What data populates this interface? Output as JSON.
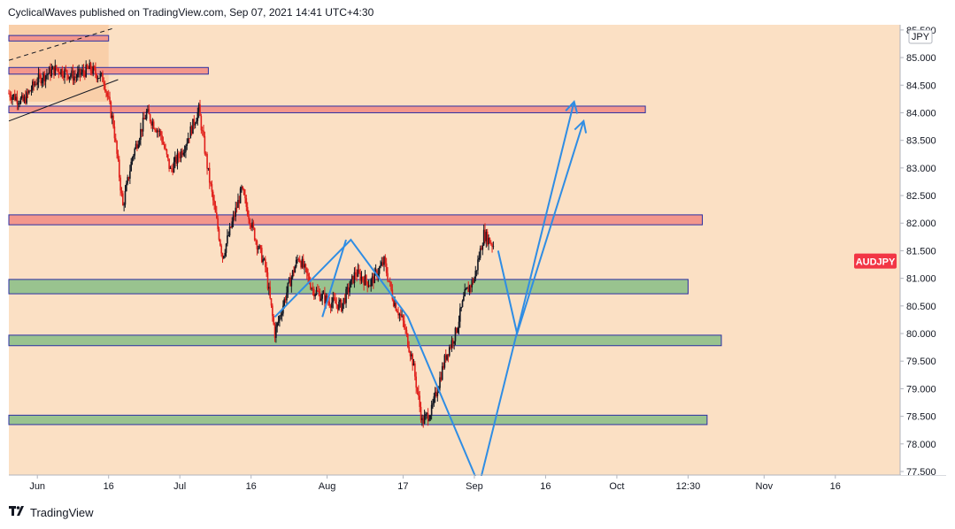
{
  "header": {
    "published": "CyclicalWaves published on TradingView.com, Sep 07, 2021 14:41 UTC+4:30"
  },
  "footer": {
    "brand": "TradingView",
    "logo_icon": "tradingview-logo-icon"
  },
  "colors": {
    "background": "#fbe0c4",
    "resistance_fill": "#f3978c",
    "support_fill": "#99c38f",
    "zone_border": "#2b2fa3",
    "projection_line": "#2f8de4",
    "candle_up": "#131722",
    "candle_down": "#e0201b",
    "price_tag": "#f23645",
    "trendline": "#131722"
  },
  "chart_data": {
    "type": "candlestick",
    "symbol_label": "AUDJPY",
    "currency_label": "JPY",
    "y_axis": {
      "min": 77.5,
      "max": 85.5,
      "ticks": [
        "85.500",
        "85.000",
        "84.500",
        "84.000",
        "83.500",
        "83.000",
        "82.500",
        "82.000",
        "81.500",
        "81.000",
        "80.500",
        "80.000",
        "79.500",
        "79.000",
        "78.500",
        "78.000",
        "77.500"
      ]
    },
    "x_axis": {
      "range_days": [
        -6,
        144
      ],
      "range_note": "x in days after 2021-06-01",
      "ticks": [
        {
          "label": "Jun",
          "day": 0
        },
        {
          "label": "16",
          "day": 15
        },
        {
          "label": "Jul",
          "day": 30
        },
        {
          "label": "16",
          "day": 45
        },
        {
          "label": "Aug",
          "day": 61
        },
        {
          "label": "17",
          "day": 77
        },
        {
          "label": "Sep",
          "day": 92
        },
        {
          "label": "16",
          "day": 107
        },
        {
          "label": "Oct",
          "day": 122
        },
        {
          "label": "12:30",
          "day": 137
        },
        {
          "label": "Nov",
          "day": 153
        },
        {
          "label": "16",
          "day": 168
        }
      ]
    },
    "price_path": [
      {
        "day": -6,
        "price": 84.35
      },
      {
        "day": -3,
        "price": 84.2
      },
      {
        "day": 0,
        "price": 84.6
      },
      {
        "day": 4,
        "price": 84.8
      },
      {
        "day": 8,
        "price": 84.65
      },
      {
        "day": 11,
        "price": 84.8
      },
      {
        "day": 14,
        "price": 84.6
      },
      {
        "day": 16,
        "price": 83.8
      },
      {
        "day": 18,
        "price": 82.3
      },
      {
        "day": 20,
        "price": 83.2
      },
      {
        "day": 23,
        "price": 84.0
      },
      {
        "day": 26,
        "price": 83.6
      },
      {
        "day": 28,
        "price": 82.95
      },
      {
        "day": 31,
        "price": 83.4
      },
      {
        "day": 34,
        "price": 84.05
      },
      {
        "day": 36,
        "price": 82.9
      },
      {
        "day": 39,
        "price": 81.4
      },
      {
        "day": 41,
        "price": 82.0
      },
      {
        "day": 43,
        "price": 82.6
      },
      {
        "day": 46,
        "price": 81.7
      },
      {
        "day": 48,
        "price": 81.2
      },
      {
        "day": 50,
        "price": 80.0
      },
      {
        "day": 53,
        "price": 80.9
      },
      {
        "day": 55,
        "price": 81.4
      },
      {
        "day": 58,
        "price": 80.8
      },
      {
        "day": 61,
        "price": 80.6
      },
      {
        "day": 64,
        "price": 80.5
      },
      {
        "day": 67,
        "price": 81.1
      },
      {
        "day": 70,
        "price": 80.9
      },
      {
        "day": 73,
        "price": 81.3
      },
      {
        "day": 75,
        "price": 80.6
      },
      {
        "day": 77,
        "price": 80.2
      },
      {
        "day": 79,
        "price": 79.5
      },
      {
        "day": 81,
        "price": 78.4
      },
      {
        "day": 83,
        "price": 78.6
      },
      {
        "day": 86,
        "price": 79.6
      },
      {
        "day": 88,
        "price": 80.0
      },
      {
        "day": 90,
        "price": 80.7
      },
      {
        "day": 92,
        "price": 81.0
      },
      {
        "day": 94,
        "price": 81.8
      },
      {
        "day": 96,
        "price": 81.6
      }
    ],
    "zones": [
      {
        "kind": "resistance",
        "from_day": -6,
        "to_day": 15,
        "low": 85.3,
        "high": 85.4
      },
      {
        "kind": "resistance",
        "from_day": -6,
        "to_day": 36,
        "low": 84.7,
        "high": 84.82
      },
      {
        "kind": "resistance",
        "from_day": -6,
        "to_day": 128,
        "low": 84.0,
        "high": 84.12
      },
      {
        "kind": "resistance",
        "from_day": -6,
        "to_day": 140,
        "low": 81.97,
        "high": 82.15
      },
      {
        "kind": "support",
        "from_day": -6,
        "to_day": 137,
        "low": 80.72,
        "high": 80.98
      },
      {
        "kind": "support",
        "from_day": -6,
        "to_day": 144,
        "low": 79.78,
        "high": 79.97
      },
      {
        "kind": "support",
        "from_day": -6,
        "to_day": 141,
        "low": 78.35,
        "high": 78.52
      }
    ],
    "projection_paths": [
      [
        {
          "day": 50,
          "price": 80.3
        },
        {
          "day": 66,
          "price": 81.7
        },
        {
          "day": 78,
          "price": 80.3
        },
        {
          "day": 93,
          "price": 77.25
        },
        {
          "day": 113,
          "price": 84.2
        }
      ],
      [
        {
          "day": 60,
          "price": 80.3
        },
        {
          "day": 65,
          "price": 81.7
        }
      ],
      [
        {
          "day": 97,
          "price": 81.5
        },
        {
          "day": 101,
          "price": 80.0
        },
        {
          "day": 115,
          "price": 83.85
        }
      ]
    ],
    "last_price": 81.4
  }
}
